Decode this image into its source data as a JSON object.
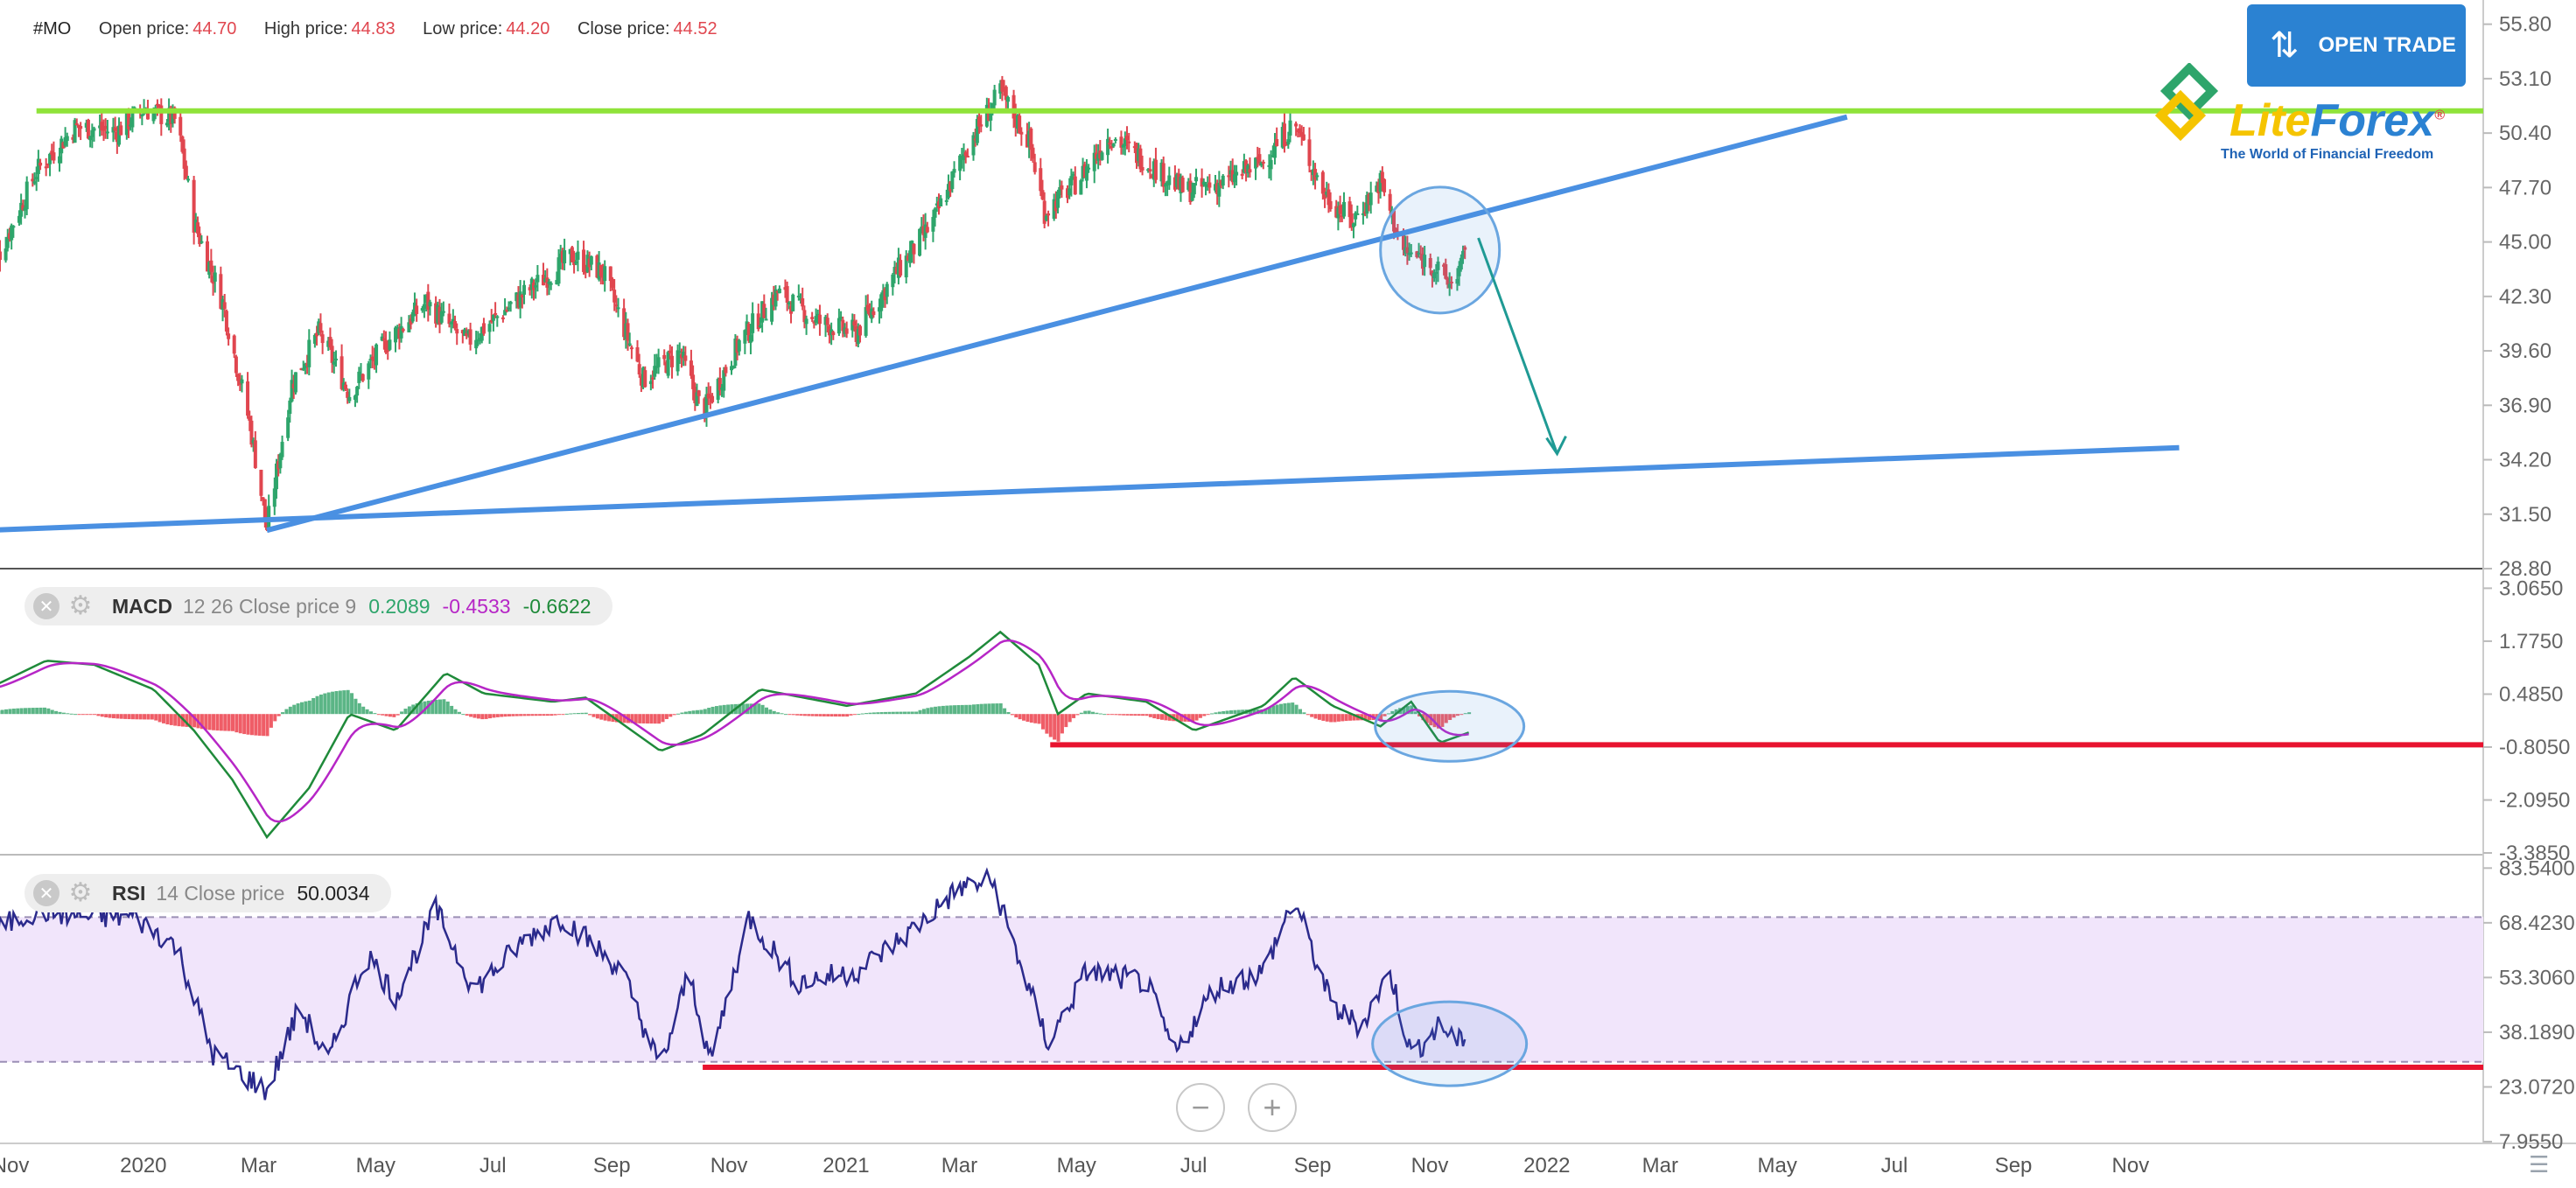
{
  "header": {
    "symbol": "#MO",
    "open_label": "Open price:",
    "open_value": "44.70",
    "high_label": "High price:",
    "high_value": "44.83",
    "low_label": "Low price:",
    "low_value": "44.20",
    "close_label": "Close price:",
    "close_value": "44.52"
  },
  "open_trade": {
    "label": "OPEN TRADE",
    "icon": "up-down-arrows-icon"
  },
  "logo": {
    "name": "LiteForex",
    "tagline": "The World of Financial Freedom"
  },
  "indicators": {
    "macd": {
      "name": "MACD",
      "params": "12 26 Close price 9",
      "v1": "0.2089",
      "v2": "-0.4533",
      "v3": "-0.6622"
    },
    "rsi": {
      "name": "RSI",
      "params": "14 Close price",
      "value": "50.0034"
    }
  },
  "zoom": {
    "minus": "−",
    "plus": "+"
  },
  "colors": {
    "bull": "#2ea56b",
    "bear": "#e0464f",
    "trend_blue": "#4a90e2",
    "resistance_green": "#8fe33a",
    "support_red": "#e8132f",
    "rsi_line": "#2b2a8c",
    "rsi_band": "#f1e5fb",
    "macd_line": "#1f8a3a",
    "signal_line": "#b626c6"
  },
  "chart_data": [
    {
      "type": "candlestick",
      "title": "#MO",
      "x_ticks": [
        "Nov",
        "2020",
        "Mar",
        "May",
        "Jul",
        "Sep",
        "Nov",
        "2021",
        "Mar",
        "May",
        "Jul",
        "Sep",
        "Nov",
        "2022",
        "Mar",
        "May",
        "Jul",
        "Sep",
        "Nov"
      ],
      "y_ticks": [
        "55.80",
        "53.10",
        "50.40",
        "47.70",
        "45.00",
        "42.30",
        "39.60",
        "36.90",
        "34.20",
        "31.50",
        "28.80"
      ],
      "ylim": [
        28.8,
        57.0
      ],
      "price_path": [
        [
          "2019-11-01",
          44.5
        ],
        [
          "2019-11-20",
          48.5
        ],
        [
          "2019-12-10",
          50.7
        ],
        [
          "2020-01-01",
          50.5
        ],
        [
          "2020-01-15",
          51.6
        ],
        [
          "2020-02-01",
          51.0
        ],
        [
          "2020-02-10",
          46.0
        ],
        [
          "2020-02-25",
          42.0
        ],
        [
          "2020-03-10",
          36.0
        ],
        [
          "2020-03-19",
          30.8
        ],
        [
          "2020-04-01",
          38.0
        ],
        [
          "2020-04-15",
          40.5
        ],
        [
          "2020-05-01",
          37.5
        ],
        [
          "2020-05-20",
          40.0
        ],
        [
          "2020-06-10",
          42.0
        ],
        [
          "2020-07-01",
          40.0
        ],
        [
          "2020-08-01",
          42.5
        ],
        [
          "2020-08-25",
          44.3
        ],
        [
          "2020-09-10",
          43.5
        ],
        [
          "2020-10-01",
          38.2
        ],
        [
          "2020-10-20",
          39.5
        ],
        [
          "2020-11-01",
          36.5
        ],
        [
          "2020-11-20",
          40.0
        ],
        [
          "2020-12-10",
          42.5
        ],
        [
          "2021-01-01",
          41.0
        ],
        [
          "2021-01-20",
          40.5
        ],
        [
          "2021-02-10",
          43.5
        ],
        [
          "2021-03-01",
          46.0
        ],
        [
          "2021-03-20",
          50.0
        ],
        [
          "2021-04-05",
          52.4
        ],
        [
          "2021-04-20",
          50.0
        ],
        [
          "2021-04-28",
          46.5
        ],
        [
          "2021-05-15",
          48.0
        ],
        [
          "2021-06-01",
          50.3
        ],
        [
          "2021-06-20",
          49.0
        ],
        [
          "2021-07-10",
          47.5
        ],
        [
          "2021-08-01",
          48.0
        ],
        [
          "2021-08-20",
          49.0
        ],
        [
          "2021-09-05",
          50.9
        ],
        [
          "2021-09-20",
          47.5
        ],
        [
          "2021-10-05",
          46.0
        ],
        [
          "2021-10-20",
          48.0
        ],
        [
          "2021-11-01",
          44.5
        ],
        [
          "2021-11-15",
          44.0
        ],
        [
          "2021-11-25",
          42.9
        ],
        [
          "2021-12-05",
          44.5
        ]
      ],
      "annotations": [
        {
          "type": "horizontal",
          "y": 51.5,
          "from": "2019-11-20",
          "color": "resistance_green"
        },
        {
          "type": "trendline",
          "from": [
            "2020-03-19",
            30.7
          ],
          "to": [
            "2022-06-20",
            51.2
          ],
          "color": "trend_blue"
        },
        {
          "type": "trendline",
          "from": [
            "2019-10-25",
            30.7
          ],
          "to": [
            "2022-12-10",
            34.8
          ],
          "color": "trend_blue"
        },
        {
          "type": "ellipse",
          "center": [
            "2021-11-20",
            44.6
          ]
        },
        {
          "type": "arrow",
          "from": [
            "2021-12-10",
            45.2
          ],
          "to": [
            "2022-01-20",
            34.5
          ]
        }
      ]
    },
    {
      "type": "line",
      "title": "MACD 12 26 Close price 9",
      "y_ticks": [
        "3.0650",
        "1.7750",
        "0.4850",
        "-0.8050",
        "-2.0950",
        "-3.3850"
      ],
      "ylim": [
        -3.385,
        3.5
      ],
      "macd_path": [
        [
          "2019-10-25",
          0.6
        ],
        [
          "2019-11-25",
          1.3
        ],
        [
          "2019-12-20",
          1.2
        ],
        [
          "2020-01-20",
          0.6
        ],
        [
          "2020-02-10",
          -0.4
        ],
        [
          "2020-03-01",
          -1.6
        ],
        [
          "2020-03-19",
          -3.0
        ],
        [
          "2020-04-10",
          -1.8
        ],
        [
          "2020-05-01",
          0.0
        ],
        [
          "2020-05-25",
          -0.4
        ],
        [
          "2020-06-20",
          1.0
        ],
        [
          "2020-07-10",
          0.5
        ],
        [
          "2020-08-15",
          0.3
        ],
        [
          "2020-09-01",
          0.4
        ],
        [
          "2020-10-10",
          -0.9
        ],
        [
          "2020-11-01",
          -0.5
        ],
        [
          "2020-12-01",
          0.6
        ],
        [
          "2021-01-15",
          0.2
        ],
        [
          "2021-02-20",
          0.5
        ],
        [
          "2021-03-20",
          1.4
        ],
        [
          "2021-04-05",
          2.0
        ],
        [
          "2021-04-25",
          1.2
        ],
        [
          "2021-05-05",
          0.0
        ],
        [
          "2021-05-20",
          0.5
        ],
        [
          "2021-06-20",
          0.3
        ],
        [
          "2021-07-15",
          -0.4
        ],
        [
          "2021-08-20",
          0.2
        ],
        [
          "2021-09-05",
          0.9
        ],
        [
          "2021-09-25",
          0.2
        ],
        [
          "2021-10-20",
          -0.3
        ],
        [
          "2021-11-05",
          0.3
        ],
        [
          "2021-11-20",
          -0.7
        ],
        [
          "2021-12-05",
          -0.45
        ]
      ],
      "annotations": [
        {
          "type": "horizontal",
          "y": -0.75,
          "from": "2021-05-01",
          "color": "support_red"
        },
        {
          "type": "ellipse",
          "center": [
            "2021-11-25",
            -0.3
          ]
        }
      ]
    },
    {
      "type": "line",
      "title": "RSI 14 Close price",
      "y_ticks": [
        "83.5400",
        "68.4230",
        "53.3060",
        "38.1890",
        "23.0720",
        "7.9550"
      ],
      "ylim": [
        7.955,
        87.0
      ],
      "band": [
        30,
        70
      ],
      "rsi_path": [
        [
          "2019-10-25",
          65
        ],
        [
          "2019-11-20",
          72
        ],
        [
          "2019-12-15",
          70
        ],
        [
          "2020-01-10",
          70
        ],
        [
          "2020-02-01",
          62
        ],
        [
          "2020-02-20",
          32
        ],
        [
          "2020-03-19",
          22
        ],
        [
          "2020-04-05",
          45
        ],
        [
          "2020-04-20",
          30
        ],
        [
          "2020-05-10",
          60
        ],
        [
          "2020-05-25",
          48
        ],
        [
          "2020-06-15",
          72
        ],
        [
          "2020-07-05",
          50
        ],
        [
          "2020-08-01",
          64
        ],
        [
          "2020-08-20",
          70
        ],
        [
          "2020-09-20",
          55
        ],
        [
          "2020-10-10",
          28
        ],
        [
          "2020-10-25",
          55
        ],
        [
          "2020-11-05",
          30
        ],
        [
          "2020-11-25",
          70
        ],
        [
          "2020-12-20",
          52
        ],
        [
          "2021-01-20",
          55
        ],
        [
          "2021-02-15",
          65
        ],
        [
          "2021-03-15",
          78
        ],
        [
          "2021-04-01",
          80
        ],
        [
          "2021-04-20",
          50
        ],
        [
          "2021-04-30",
          35
        ],
        [
          "2021-05-20",
          55
        ],
        [
          "2021-06-20",
          52
        ],
        [
          "2021-07-05",
          32
        ],
        [
          "2021-07-25",
          50
        ],
        [
          "2021-08-20",
          55
        ],
        [
          "2021-09-05",
          75
        ],
        [
          "2021-09-25",
          45
        ],
        [
          "2021-10-10",
          40
        ],
        [
          "2021-10-25",
          55
        ],
        [
          "2021-11-05",
          32
        ],
        [
          "2021-11-20",
          40
        ],
        [
          "2021-12-01",
          35
        ],
        [
          "2021-12-10",
          50
        ]
      ],
      "annotations": [
        {
          "type": "horizontal",
          "y": 28.5,
          "from": "2020-11-01",
          "color": "support_red"
        },
        {
          "type": "ellipse",
          "center": [
            "2021-11-25",
            35
          ]
        }
      ]
    }
  ]
}
